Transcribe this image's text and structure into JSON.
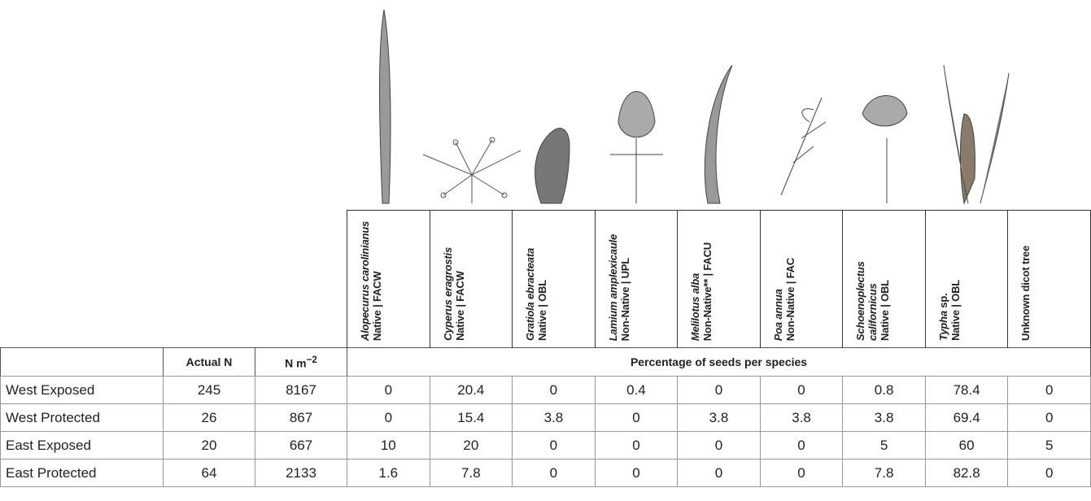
{
  "species": [
    {
      "name": "Alopecurus carolinianus",
      "status": "Native | FACW"
    },
    {
      "name": "Cyperus eragrostis",
      "status": "Native | FACW"
    },
    {
      "name": "Gratiola ebracteata",
      "status": "Native | OBL"
    },
    {
      "name": "Lamium amplexicaule",
      "status": "Non-Native | UPL"
    },
    {
      "name": "Melilotus alba",
      "status": "Non-Native** | FACU"
    },
    {
      "name": "Poa annua",
      "status": "Non-Native | FAC"
    },
    {
      "name": "Schoenoplectus californicus",
      "status": "Native | OBL"
    },
    {
      "name": "Typha",
      "suffix": "sp.",
      "status": "Native | OBL"
    },
    {
      "plain": "Unknown dicot tree"
    }
  ],
  "columns": {
    "actual_n": "Actual N",
    "n_per_m2": {
      "base": "N m",
      "exponent": "−2"
    },
    "group": "Percentage of seeds per species"
  },
  "rows": [
    {
      "label": "West Exposed",
      "actual_n": 245,
      "n_per_m2": 8167,
      "percentages": [
        0,
        20.4,
        0,
        0.4,
        0,
        0,
        0.8,
        78.4,
        0
      ]
    },
    {
      "label": "West Protected",
      "actual_n": 26,
      "n_per_m2": 867,
      "percentages": [
        0,
        15.4,
        3.8,
        0,
        3.8,
        3.8,
        3.8,
        69.4,
        0
      ]
    },
    {
      "label": "East Exposed",
      "actual_n": 20,
      "n_per_m2": 667,
      "percentages": [
        10,
        20,
        0,
        0,
        0,
        0,
        5,
        60,
        5
      ]
    },
    {
      "label": "East Protected",
      "actual_n": 64,
      "n_per_m2": 2133,
      "percentages": [
        1.6,
        7.8,
        0,
        0,
        0,
        0,
        7.8,
        82.8,
        0
      ]
    }
  ]
}
